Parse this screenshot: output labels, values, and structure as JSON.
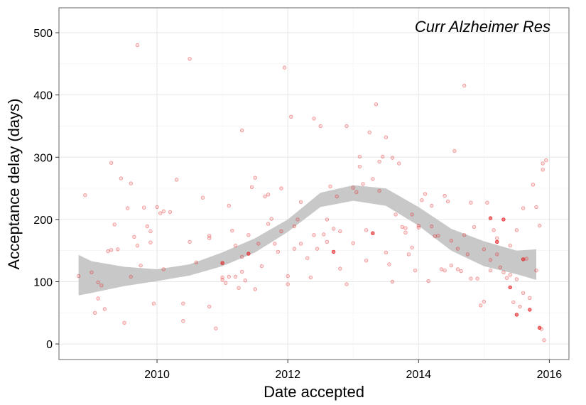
{
  "chart_data": {
    "type": "scatter",
    "annotation": "Curr Alzheimer Res",
    "xlabel": "Date accepted",
    "ylabel": "Acceptance delay (days)",
    "xlim": [
      2008.5,
      2016.3
    ],
    "ylim": [
      -25,
      540
    ],
    "x_ticks": [
      2010,
      2012,
      2014,
      2016
    ],
    "y_ticks": [
      0,
      100,
      200,
      300,
      400,
      500
    ],
    "x_tick_labels": [
      "2010",
      "2012",
      "2014",
      "2016"
    ],
    "y_tick_labels": [
      "0",
      "100",
      "200",
      "300",
      "400",
      "500"
    ],
    "grid": true,
    "point_color": "#E41A1C",
    "band_color": "#c8c8c8",
    "smooth_band": {
      "x": [
        2008.8,
        2009.0,
        2009.5,
        2010.0,
        2010.5,
        2011.0,
        2011.5,
        2012.0,
        2012.5,
        2013.0,
        2013.5,
        2014.0,
        2014.5,
        2015.0,
        2015.5,
        2015.8
      ],
      "lower": [
        78,
        82,
        93,
        101,
        110,
        125,
        147,
        180,
        220,
        230,
        222,
        190,
        150,
        125,
        112,
        103
      ],
      "upper": [
        143,
        133,
        124,
        120,
        128,
        147,
        170,
        200,
        243,
        255,
        250,
        220,
        185,
        165,
        150,
        152
      ]
    },
    "points": {
      "x": [
        2008.8,
        2008.9,
        2009.0,
        2009.05,
        2009.1,
        2009.15,
        2009.2,
        2009.25,
        2009.3,
        2009.35,
        2009.4,
        2009.45,
        2009.5,
        2009.55,
        2009.6,
        2009.65,
        2009.7,
        2009.75,
        2009.8,
        2009.85,
        2009.9,
        2009.95,
        2010.0,
        2010.05,
        2010.1,
        2010.2,
        2010.3,
        2010.4,
        2010.5,
        2010.6,
        2010.7,
        2010.8,
        2010.9,
        2011.0,
        2011.05,
        2011.1,
        2011.15,
        2011.2,
        2011.25,
        2011.3,
        2011.35,
        2011.4,
        2011.45,
        2011.5,
        2011.55,
        2011.6,
        2011.65,
        2011.7,
        2011.75,
        2011.8,
        2011.85,
        2011.9,
        2011.95,
        2012.0,
        2012.05,
        2012.1,
        2012.15,
        2012.2,
        2012.3,
        2012.35,
        2012.4,
        2012.45,
        2012.5,
        2012.55,
        2012.6,
        2012.65,
        2012.7,
        2012.75,
        2012.8,
        2012.9,
        2013.0,
        2013.05,
        2013.1,
        2013.15,
        2013.2,
        2013.25,
        2013.3,
        2013.35,
        2013.4,
        2013.45,
        2013.5,
        2013.55,
        2013.6,
        2013.65,
        2013.7,
        2013.75,
        2013.8,
        2013.85,
        2013.9,
        2013.95,
        2014.0,
        2014.05,
        2014.1,
        2014.15,
        2014.2,
        2014.25,
        2014.3,
        2014.35,
        2014.4,
        2014.45,
        2014.5,
        2014.55,
        2014.6,
        2014.65,
        2014.7,
        2014.75,
        2014.8,
        2014.85,
        2014.9,
        2014.95,
        2015.0,
        2015.05,
        2015.1,
        2015.15,
        2015.2,
        2015.25,
        2015.3,
        2015.35,
        2015.4,
        2015.45,
        2015.5,
        2015.55,
        2015.6,
        2015.65,
        2015.7,
        2015.75,
        2015.8,
        2015.85,
        2015.9,
        2015.95,
        2009.1,
        2009.3,
        2009.6,
        2009.9,
        2010.1,
        2010.4,
        2010.8,
        2011.0,
        2011.2,
        2011.3,
        2011.5,
        2011.7,
        2011.9,
        2012.0,
        2012.2,
        2012.4,
        2012.6,
        2012.8,
        2013.0,
        2013.2,
        2013.4,
        2013.6,
        2013.8,
        2014.0,
        2014.2,
        2014.4,
        2014.6,
        2014.8,
        2015.0,
        2015.2,
        2015.4,
        2015.6,
        2015.8,
        2015.9,
        2011.0,
        2011.4,
        2012.1,
        2012.7,
        2013.3,
        2013.9,
        2014.5,
        2015.1,
        2015.5,
        2015.3,
        2015.7,
        2015.4,
        2015.6,
        2015.1,
        2015.2,
        2015.5,
        2015.85,
        2015.88,
        2015.92,
        2010.8,
        2011.3,
        2011.1,
        2012.9,
        2013.1,
        2013.5,
        2014.7,
        2010.5,
        2009.7
      ],
      "y": [
        109,
        239,
        115,
        50,
        99,
        94,
        56,
        149,
        291,
        192,
        152,
        266,
        34,
        218,
        258,
        172,
        158,
        126,
        219,
        189,
        181,
        65,
        220,
        210,
        213,
        212,
        264,
        37,
        164,
        131,
        235,
        170,
        25,
        103,
        98,
        222,
        182,
        158,
        90,
        140,
        102,
        175,
        252,
        267,
        161,
        125,
        237,
        193,
        201,
        161,
        148,
        181,
        444,
        109,
        365,
        189,
        200,
        228,
        138,
        107,
        362,
        153,
        350,
        176,
        164,
        253,
        185,
        237,
        121,
        96,
        162,
        244,
        301,
        257,
        134,
        340,
        265,
        385,
        293,
        301,
        147,
        128,
        100,
        208,
        290,
        188,
        179,
        144,
        155,
        118,
        187,
        231,
        241,
        101,
        222,
        173,
        174,
        120,
        118,
        229,
        126,
        310,
        153,
        117,
        175,
        144,
        227,
        188,
        105,
        62,
        152,
        227,
        118,
        183,
        170,
        123,
        115,
        106,
        158,
        67,
        104,
        60,
        82,
        137,
        74,
        256,
        220,
        190,
        290,
        295,
        73,
        151,
        108,
        163,
        120,
        65,
        174,
        107,
        108,
        116,
        88,
        240,
        250,
        96,
        161,
        175,
        200,
        181,
        251,
        183,
        246,
        299,
        186,
        190,
        189,
        238,
        120,
        105,
        68,
        144,
        111,
        218,
        118,
        280,
        130,
        145,
        153,
        148,
        178,
        208,
        166,
        135,
        183,
        200,
        55,
        91,
        136,
        202,
        164,
        47,
        26,
        24,
        6,
        60,
        343,
        108,
        350,
        285,
        332,
        415,
        458,
        480
      ],
      "dense": [
        0,
        0,
        0,
        0,
        0,
        0,
        0,
        0,
        0,
        0,
        0,
        0,
        0,
        0,
        0,
        0,
        0,
        0,
        0,
        0,
        0,
        0,
        0,
        0,
        0,
        0,
        0,
        0,
        0,
        0,
        0,
        0,
        0,
        0,
        0,
        0,
        0,
        0,
        0,
        0,
        0,
        0,
        0,
        0,
        0,
        0,
        0,
        0,
        0,
        0,
        0,
        0,
        0,
        0,
        0,
        0,
        0,
        0,
        0,
        0,
        0,
        0,
        0,
        0,
        0,
        0,
        0,
        0,
        0,
        0,
        0,
        0,
        0,
        0,
        0,
        0,
        0,
        0,
        0,
        0,
        0,
        0,
        0,
        0,
        0,
        0,
        0,
        0,
        0,
        0,
        0,
        0,
        0,
        0,
        0,
        0,
        0,
        0,
        0,
        0,
        0,
        0,
        0,
        0,
        0,
        0,
        0,
        0,
        0,
        0,
        0,
        0,
        0,
        0,
        0,
        0,
        0,
        0,
        0,
        0,
        0,
        0,
        0,
        0,
        0,
        0,
        0,
        0,
        0,
        0,
        0,
        0,
        0,
        0,
        0,
        0,
        0,
        0,
        0,
        0,
        0,
        0,
        0,
        0,
        0,
        0,
        0,
        0,
        0,
        0,
        0,
        0,
        0,
        0,
        0,
        0,
        0,
        0,
        0,
        0,
        0,
        0,
        0,
        0,
        1,
        1,
        0,
        1,
        1,
        0,
        0,
        0,
        0,
        1,
        1,
        1,
        1,
        1,
        1,
        1,
        1,
        0,
        0,
        0,
        0,
        0,
        0,
        0,
        0,
        0,
        0,
        0
      ]
    }
  }
}
